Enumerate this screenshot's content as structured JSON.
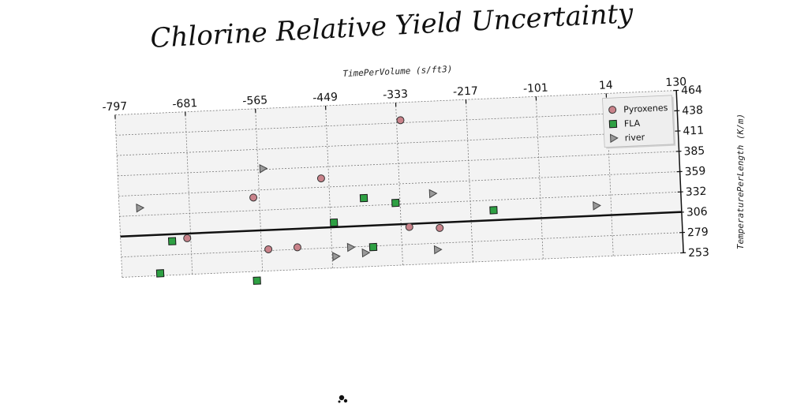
{
  "chart_data": {
    "type": "scatter",
    "title": "Chlorine Relative Yield Uncertainty",
    "xlabel": "TimePerVolume (s/ft3)",
    "ylabel": "TemperaturePerLength (K/m)",
    "xlim": [
      -797,
      130
    ],
    "ylim": [
      253,
      464
    ],
    "x_ticks": [
      "-797",
      "-681",
      "-565",
      "-449",
      "-333",
      "-217",
      "-101",
      "14",
      "130"
    ],
    "y_ticks": [
      "464",
      "438",
      "411",
      "385",
      "359",
      "332",
      "306",
      "279",
      "253"
    ],
    "grid": true,
    "legend_position": "top-right",
    "hline": 306,
    "series": [
      {
        "name": "Pyroxenes",
        "marker": "circle",
        "color": "#c9828a",
        "points": [
          [
            -327,
            441
          ],
          [
            -462,
            370
          ],
          [
            -575,
            349
          ],
          [
            -687,
            300
          ],
          [
            -554,
            281
          ],
          [
            -506,
            282
          ],
          [
            -320,
            302
          ],
          [
            -270,
            299
          ]
        ]
      },
      {
        "name": "FLA",
        "marker": "square",
        "color": "#2ea043",
        "points": [
          [
            -393,
            342
          ],
          [
            -341,
            334
          ],
          [
            -180,
            319
          ],
          [
            -444,
            312
          ],
          [
            -712,
            297
          ],
          [
            -381,
            278
          ],
          [
            -734,
            256
          ],
          [
            -575,
            241
          ]
        ]
      },
      {
        "name": "river",
        "marker": "triangle",
        "color": "#999999",
        "points": [
          [
            -557,
            386
          ],
          [
            -763,
            342
          ],
          [
            -279,
            344
          ],
          [
            -10,
            319
          ],
          [
            -418,
            279
          ],
          [
            -443,
            268
          ],
          [
            -394,
            271
          ],
          [
            -275,
            271
          ]
        ]
      }
    ]
  }
}
